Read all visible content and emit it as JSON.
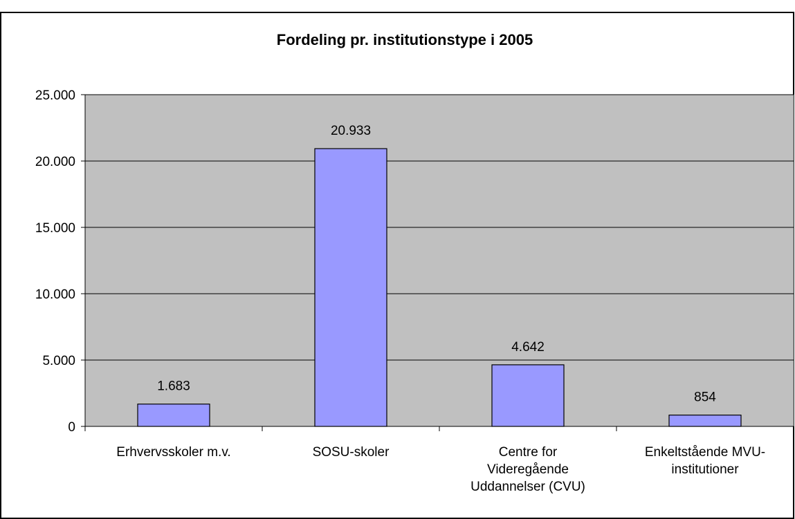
{
  "chart_data": {
    "type": "bar",
    "title": "Fordeling pr. institutionstype i 2005",
    "categories": [
      "Erhvervsskoler m.v.",
      "SOSU-skoler",
      "Centre for Videregående Uddannelser (CVU)",
      "Enkeltstående MVU-institutioner"
    ],
    "values": [
      1683,
      20933,
      4642,
      854
    ],
    "value_labels": [
      "1.683",
      "20.933",
      "4.642",
      "854"
    ],
    "color": "#9999ff",
    "ylim": [
      0,
      25000
    ],
    "yticks": [
      0,
      {
        "value": 5000,
        "label": "5.000"
      },
      {
        "value": 10000,
        "label": "10.000"
      },
      {
        "value": 15000,
        "label": "15.000"
      },
      {
        "value": 20000,
        "label": "20.000"
      },
      {
        "value": 25000,
        "label": "25.000"
      }
    ],
    "grid": true
  }
}
